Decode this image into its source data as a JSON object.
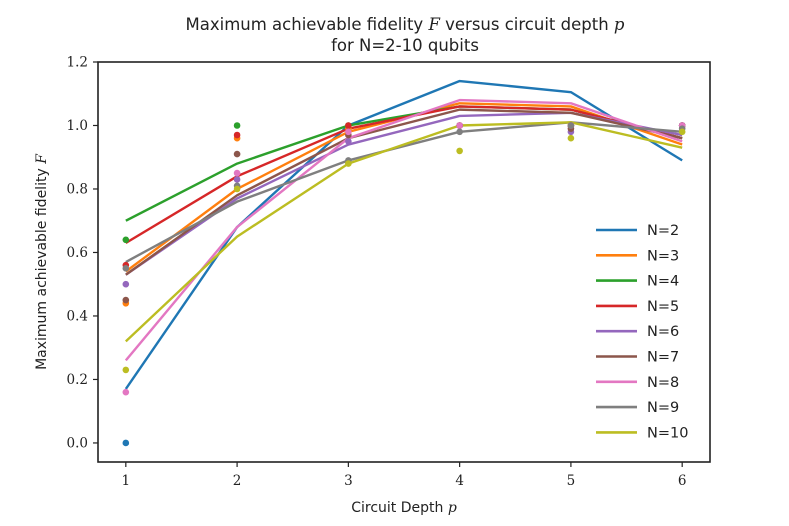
{
  "chart_data": {
    "type": "line",
    "title_line1_prefix": "Maximum achievable fidelity ",
    "title_line1_var": "F",
    "title_line1_mid": " versus circuit depth ",
    "title_line1_var2": "p",
    "title_line2": "for N=2-10 qubits",
    "xlabel_text": "Circuit Depth ",
    "xlabel_var": "p",
    "ylabel_text": "Maximum achievable fidelity ",
    "ylabel_var": "F",
    "x": [
      1,
      2,
      3,
      4,
      5,
      6
    ],
    "xlim": [
      0.75,
      6.25
    ],
    "ylim": [
      -0.06,
      1.2
    ],
    "xticks": [
      "1",
      "2",
      "3",
      "4",
      "5",
      "6"
    ],
    "yticks": [
      "0.0",
      "0.2",
      "0.4",
      "0.6",
      "0.8",
      "1.0",
      "1.2"
    ],
    "legend_position": "center-right",
    "series": [
      {
        "name": "N=2",
        "color": "#1f77b4",
        "line": [
          0.17,
          0.68,
          1.0,
          1.14,
          1.105,
          0.89
        ],
        "points": [
          0.0,
          null,
          null,
          null,
          null,
          1.0
        ]
      },
      {
        "name": "N=3",
        "color": "#ff7f0e",
        "line": [
          0.54,
          0.8,
          0.98,
          1.07,
          1.06,
          0.94
        ],
        "points": [
          0.44,
          0.96,
          0.99,
          1.0,
          1.0,
          1.0
        ]
      },
      {
        "name": "N=4",
        "color": "#2ca02c",
        "line": [
          0.7,
          0.88,
          1.0,
          1.06,
          1.05,
          0.96
        ],
        "points": [
          0.64,
          1.0,
          1.0,
          1.0,
          1.0,
          1.0
        ]
      },
      {
        "name": "N=5",
        "color": "#d62728",
        "line": [
          0.63,
          0.84,
          0.99,
          1.06,
          1.05,
          0.96
        ],
        "points": [
          0.56,
          0.97,
          1.0,
          1.0,
          1.0,
          1.0
        ]
      },
      {
        "name": "N=6",
        "color": "#9467bd",
        "line": [
          0.53,
          0.77,
          0.94,
          1.03,
          1.04,
          0.97
        ],
        "points": [
          0.5,
          0.83,
          0.95,
          1.0,
          0.98,
          1.0
        ]
      },
      {
        "name": "N=7",
        "color": "#8c564b",
        "line": [
          0.53,
          0.78,
          0.96,
          1.05,
          1.04,
          0.96
        ],
        "points": [
          0.45,
          0.91,
          0.97,
          1.0,
          0.99,
          1.0
        ]
      },
      {
        "name": "N=8",
        "color": "#e377c2",
        "line": [
          0.26,
          0.68,
          0.96,
          1.08,
          1.07,
          0.95
        ],
        "points": [
          0.16,
          0.85,
          0.98,
          1.0,
          1.0,
          1.0
        ]
      },
      {
        "name": "N=9",
        "color": "#7f7f7f",
        "line": [
          0.57,
          0.76,
          0.89,
          0.98,
          1.01,
          0.98
        ],
        "points": [
          0.55,
          0.81,
          0.89,
          0.98,
          1.0,
          0.99
        ]
      },
      {
        "name": "N=10",
        "color": "#bcbd22",
        "line": [
          0.32,
          0.65,
          0.88,
          1.0,
          1.01,
          0.93
        ],
        "points": [
          0.23,
          0.8,
          0.88,
          0.92,
          0.96,
          0.98
        ]
      }
    ]
  }
}
